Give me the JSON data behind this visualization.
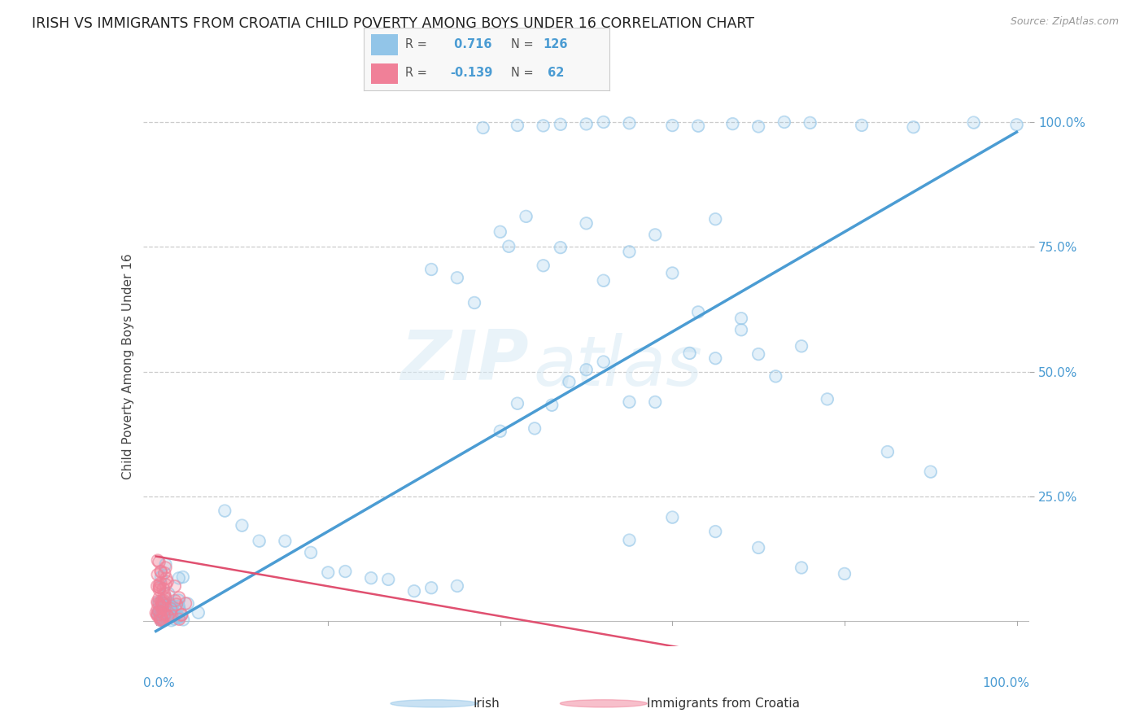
{
  "title": "IRISH VS IMMIGRANTS FROM CROATIA CHILD POVERTY AMONG BOYS UNDER 16 CORRELATION CHART",
  "source": "Source: ZipAtlas.com",
  "irish_R": 0.716,
  "irish_N": 126,
  "croatia_R": -0.139,
  "croatia_N": 62,
  "irish_color": "#92C5E8",
  "croatia_color": "#F08098",
  "irish_line_color": "#4B9CD3",
  "croatia_line_color": "#E05070",
  "ylabel": "Child Poverty Among Boys Under 16",
  "ytick_labels": [
    "25.0%",
    "50.0%",
    "75.0%",
    "100.0%"
  ],
  "ytick_values": [
    0.25,
    0.5,
    0.75,
    1.0
  ],
  "xtick_left": "0.0%",
  "xtick_right": "100.0%",
  "watermark_zip": "ZIP",
  "watermark_atlas": "atlas",
  "background_color": "#ffffff",
  "title_fontsize": 12.5,
  "tick_fontsize": 11,
  "ylabel_fontsize": 11
}
